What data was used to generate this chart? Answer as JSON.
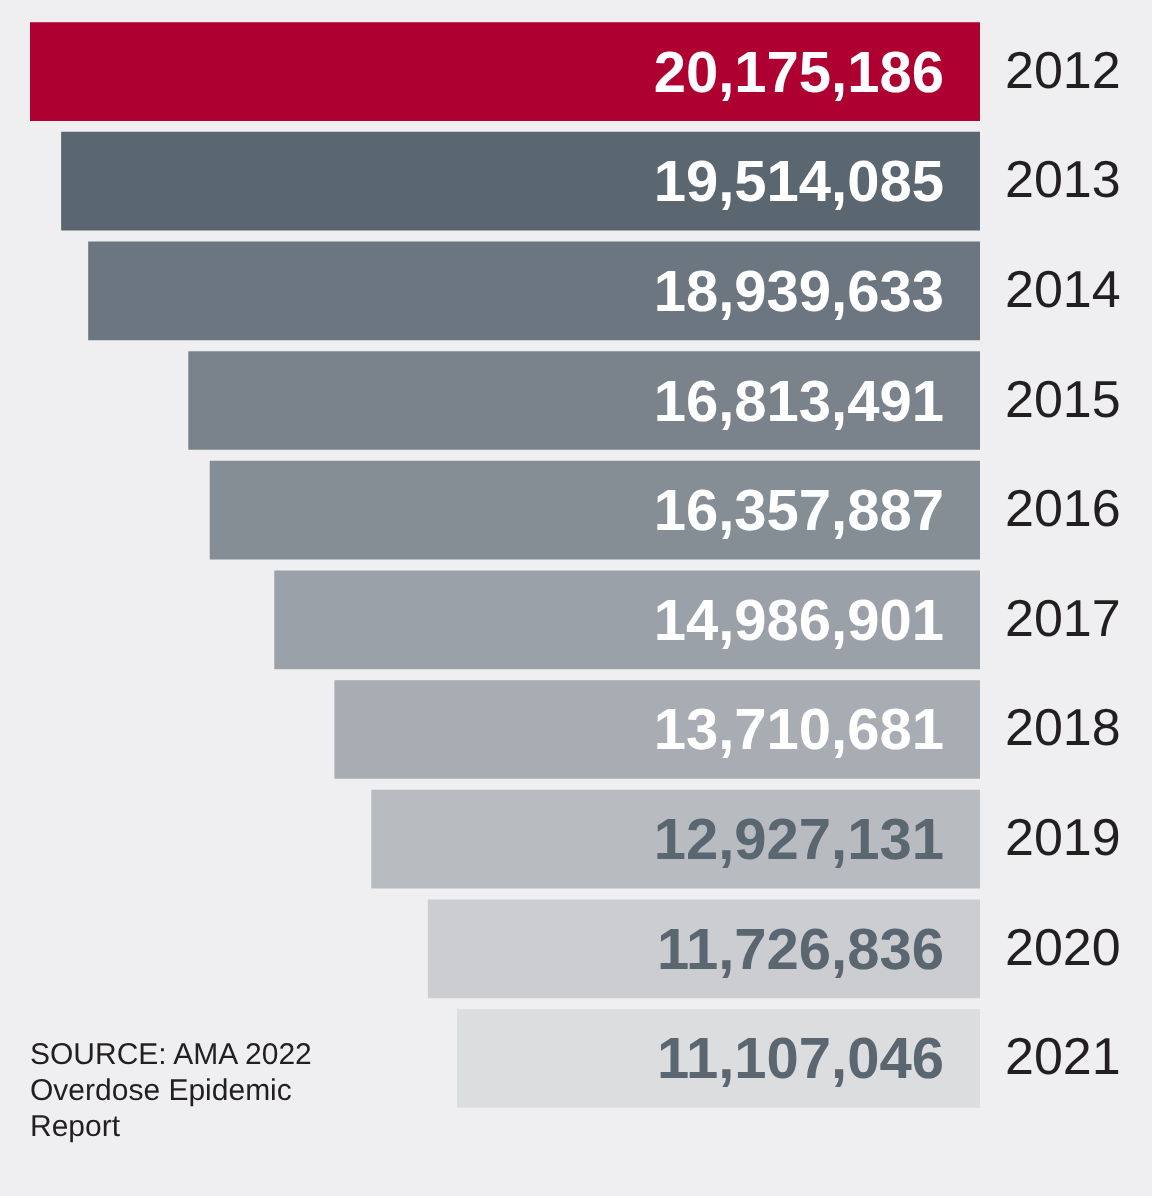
{
  "chart_data": {
    "type": "bar",
    "orientation": "horizontal",
    "categories": [
      "2012",
      "2013",
      "2014",
      "2015",
      "2016",
      "2017",
      "2018",
      "2019",
      "2020",
      "2021"
    ],
    "values": [
      20175186,
      19514085,
      18939633,
      16813491,
      16357887,
      14986901,
      13710681,
      12927131,
      11726836,
      11107046
    ],
    "value_labels": [
      "20,175,186",
      "19,514,085",
      "18,939,633",
      "16,813,491",
      "16,357,887",
      "14,986,901",
      "13,710,681",
      "12,927,131",
      "11,726,836",
      "11,107,046"
    ],
    "colors": [
      "#ae0031",
      "#5a6670",
      "#6c7680",
      "#7a838c",
      "#858d95",
      "#9aa1a8",
      "#a7adb3",
      "#b8bcc1",
      "#cbcdd0",
      "#dcdddf"
    ],
    "annotations": [
      "SOURCE: AMA 2022 Overdose Epidemic Report"
    ]
  }
}
